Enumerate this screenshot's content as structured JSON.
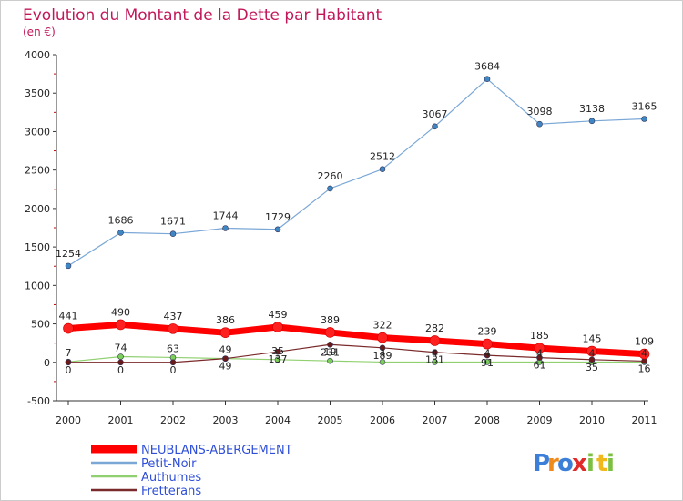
{
  "chart_data": {
    "type": "line",
    "title": "Evolution du Montant de la Dette par Habitant",
    "subtitle": "(en €)",
    "categories": [
      "2000",
      "2001",
      "2002",
      "2003",
      "2004",
      "2005",
      "2006",
      "2007",
      "2008",
      "2009",
      "2010",
      "2011"
    ],
    "ylim": [
      -500,
      4000
    ],
    "yticks": [
      -500,
      0,
      500,
      1000,
      1500,
      2000,
      2500,
      3000,
      3500,
      4000
    ],
    "grid": false,
    "legend_position": "bottom-left",
    "series": [
      {
        "name": "NEUBLANS-ABERGEMENT",
        "color": "#ff0000",
        "marker": "#ff2020",
        "width": 7,
        "values": [
          441,
          490,
          437,
          386,
          459,
          389,
          322,
          282,
          239,
          185,
          145,
          109
        ]
      },
      {
        "name": "Petit-Noir",
        "color": "#7aa7d6",
        "marker": "#3f86c4",
        "width": 1.2,
        "values": [
          1254,
          1686,
          1671,
          1744,
          1729,
          2260,
          2512,
          3067,
          3684,
          3098,
          3138,
          3165
        ]
      },
      {
        "name": "Authumes",
        "color": "#90d070",
        "marker": "#7ccf5a",
        "width": 1.2,
        "values": [
          7,
          74,
          63,
          49,
          35,
          19,
          4,
          4,
          4,
          4,
          4,
          4
        ]
      },
      {
        "name": "Fretterans",
        "color": "#7a2a2a",
        "marker": "#6b1a1a",
        "width": 1.2,
        "values": [
          0,
          0,
          0,
          49,
          137,
          231,
          189,
          131,
          91,
          61,
          35,
          16
        ]
      }
    ]
  },
  "logo": {
    "letters": [
      "P",
      "r",
      "o",
      "x",
      "i",
      "t",
      "i"
    ]
  }
}
